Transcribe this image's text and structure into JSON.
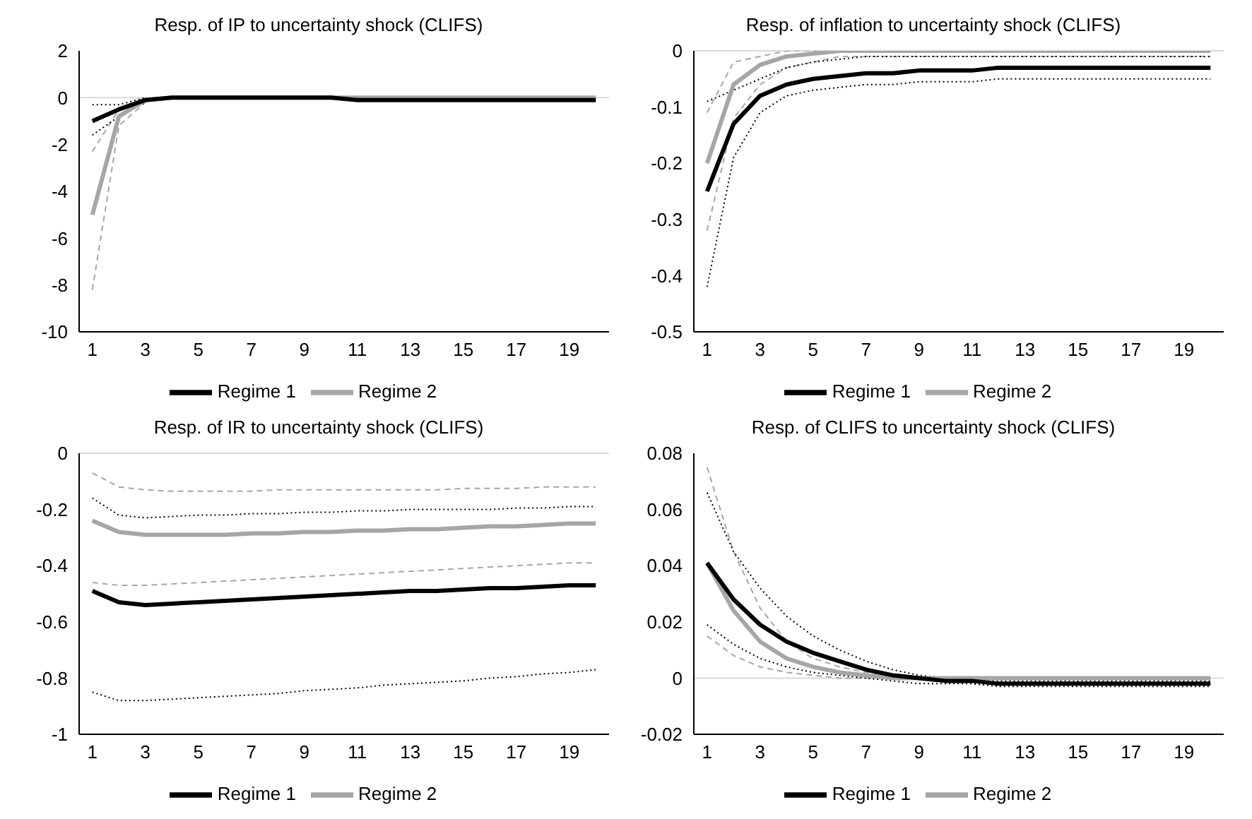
{
  "chart_data": [
    {
      "type": "line",
      "title": "Resp. of IP to uncertainty shock (CLIFS)",
      "x": [
        1,
        2,
        3,
        4,
        5,
        6,
        7,
        8,
        9,
        10,
        11,
        12,
        13,
        14,
        15,
        16,
        17,
        18,
        19,
        20
      ],
      "xlim": [
        0.5,
        20.5
      ],
      "xticks": [
        1,
        3,
        5,
        7,
        9,
        11,
        13,
        15,
        17,
        19
      ],
      "ylim": [
        -10,
        2
      ],
      "yticks": [
        -10,
        -8,
        -6,
        -4,
        -2,
        0,
        2
      ],
      "legend": "bottom",
      "grid": false,
      "ref_lines": [
        {
          "axis": "y",
          "value": 0,
          "color": "#d9d9d9"
        }
      ],
      "series": [
        {
          "name": "Regime 1",
          "color": "#000000",
          "values": [
            -1,
            -0.5,
            -0.1,
            0,
            0,
            0,
            0,
            0,
            0,
            0,
            -0.1,
            -0.1,
            -0.1,
            -0.1,
            -0.1,
            -0.1,
            -0.1,
            -0.1,
            -0.1,
            -0.1
          ]
        },
        {
          "name": "Regime 2",
          "color": "#a6a6a6",
          "values": [
            -5,
            -0.8,
            -0.1,
            0,
            0,
            0,
            0,
            0,
            0,
            0,
            0,
            0,
            0,
            0,
            0,
            0,
            0,
            0,
            0,
            0
          ]
        },
        {
          "color": "#000000",
          "line_style": "dotted",
          "values": [
            -0.3,
            -0.3,
            0,
            null,
            null,
            null,
            null,
            null,
            null,
            null,
            null,
            null,
            null,
            null,
            null,
            null,
            null,
            null,
            null,
            null
          ]
        },
        {
          "color": "#000000",
          "line_style": "dotted",
          "values": [
            -1.6,
            -0.8,
            -0.2,
            null,
            null,
            null,
            null,
            null,
            null,
            null,
            null,
            null,
            null,
            null,
            null,
            null,
            null,
            null,
            null,
            null
          ]
        },
        {
          "color": "#a6a6a6",
          "line_style": "dashed",
          "values": [
            -2.3,
            -0.5,
            0,
            null,
            null,
            null,
            null,
            null,
            null,
            null,
            null,
            null,
            null,
            null,
            null,
            null,
            null,
            null,
            null,
            null
          ]
        },
        {
          "color": "#a6a6a6",
          "line_style": "dashed",
          "values": [
            -8.2,
            -1.2,
            -0.2,
            null,
            null,
            null,
            null,
            null,
            null,
            null,
            null,
            null,
            null,
            null,
            null,
            null,
            null,
            null,
            null,
            null
          ]
        }
      ]
    },
    {
      "type": "line",
      "title": "Resp. of inflation to uncertainty shock (CLIFS)",
      "x": [
        1,
        2,
        3,
        4,
        5,
        6,
        7,
        8,
        9,
        10,
        11,
        12,
        13,
        14,
        15,
        16,
        17,
        18,
        19,
        20
      ],
      "xlim": [
        0.5,
        20.5
      ],
      "xticks": [
        1,
        3,
        5,
        7,
        9,
        11,
        13,
        15,
        17,
        19
      ],
      "ylim": [
        -0.5,
        0
      ],
      "yticks": [
        -0.5,
        -0.4,
        -0.3,
        -0.2,
        -0.1,
        0
      ],
      "legend": "bottom",
      "grid": false,
      "ref_lines": [
        {
          "axis": "y",
          "value": 0,
          "color": "#d9d9d9"
        }
      ],
      "series": [
        {
          "name": "Regime 1",
          "color": "#000000",
          "values": [
            -0.25,
            -0.13,
            -0.08,
            -0.06,
            -0.05,
            -0.045,
            -0.04,
            -0.04,
            -0.035,
            -0.035,
            -0.035,
            -0.03,
            -0.03,
            -0.03,
            -0.03,
            -0.03,
            -0.03,
            -0.03,
            -0.03,
            -0.03
          ]
        },
        {
          "name": "Regime 2",
          "color": "#a6a6a6",
          "values": [
            -0.2,
            -0.06,
            -0.025,
            -0.01,
            -0.005,
            0,
            0,
            0,
            0,
            0,
            0,
            0,
            0,
            0,
            0,
            0,
            0,
            0,
            0,
            0
          ]
        },
        {
          "color": "#000000",
          "line_style": "dotted",
          "values": [
            -0.09,
            -0.07,
            -0.05,
            -0.03,
            -0.02,
            -0.015,
            -0.01,
            -0.01,
            -0.01,
            -0.01,
            -0.01,
            -0.01,
            -0.01,
            -0.01,
            -0.01,
            -0.01,
            -0.01,
            -0.01,
            -0.01,
            -0.01
          ]
        },
        {
          "color": "#000000",
          "line_style": "dotted",
          "values": [
            -0.42,
            -0.19,
            -0.11,
            -0.08,
            -0.07,
            -0.065,
            -0.06,
            -0.06,
            -0.055,
            -0.055,
            -0.055,
            -0.05,
            -0.05,
            -0.05,
            -0.05,
            -0.05,
            -0.05,
            -0.05,
            -0.05,
            -0.05
          ]
        },
        {
          "color": "#a6a6a6",
          "line_style": "dashed",
          "values": [
            -0.11,
            -0.02,
            -0.01,
            0,
            0,
            0,
            0,
            0,
            0,
            0,
            0,
            0,
            0,
            0,
            0,
            0,
            0,
            0,
            0,
            0
          ]
        },
        {
          "color": "#a6a6a6",
          "line_style": "dashed",
          "values": [
            -0.32,
            -0.12,
            -0.06,
            -0.03,
            -0.02,
            -0.01,
            -0.01,
            -0.01,
            -0.01,
            -0.01,
            -0.01,
            -0.01,
            -0.01,
            -0.01,
            -0.01,
            -0.01,
            -0.01,
            -0.01,
            -0.01,
            -0.01
          ]
        }
      ]
    },
    {
      "type": "line",
      "title": "Resp. of IR to uncertainty shock (CLIFS)",
      "x": [
        1,
        2,
        3,
        4,
        5,
        6,
        7,
        8,
        9,
        10,
        11,
        12,
        13,
        14,
        15,
        16,
        17,
        18,
        19,
        20
      ],
      "xlim": [
        0.5,
        20.5
      ],
      "xticks": [
        1,
        3,
        5,
        7,
        9,
        11,
        13,
        15,
        17,
        19
      ],
      "ylim": [
        -1,
        0
      ],
      "yticks": [
        -1,
        -0.8,
        -0.6,
        -0.4,
        -0.2,
        0
      ],
      "legend": "bottom",
      "grid": false,
      "ref_lines": [
        {
          "axis": "y",
          "value": 0,
          "color": "#d9d9d9"
        }
      ],
      "series": [
        {
          "name": "Regime 1",
          "color": "#000000",
          "values": [
            -0.49,
            -0.53,
            -0.54,
            -0.535,
            -0.53,
            -0.525,
            -0.52,
            -0.515,
            -0.51,
            -0.505,
            -0.5,
            -0.495,
            -0.49,
            -0.49,
            -0.485,
            -0.48,
            -0.48,
            -0.475,
            -0.47,
            -0.47
          ]
        },
        {
          "name": "Regime 2",
          "color": "#a6a6a6",
          "values": [
            -0.24,
            -0.28,
            -0.29,
            -0.29,
            -0.29,
            -0.29,
            -0.285,
            -0.285,
            -0.28,
            -0.28,
            -0.275,
            -0.275,
            -0.27,
            -0.27,
            -0.265,
            -0.26,
            -0.26,
            -0.255,
            -0.25,
            -0.25
          ]
        },
        {
          "color": "#000000",
          "line_style": "dotted",
          "values": [
            -0.16,
            -0.22,
            -0.23,
            -0.225,
            -0.22,
            -0.22,
            -0.215,
            -0.215,
            -0.21,
            -0.21,
            -0.205,
            -0.205,
            -0.2,
            -0.2,
            -0.2,
            -0.2,
            -0.195,
            -0.195,
            -0.19,
            -0.19
          ]
        },
        {
          "color": "#000000",
          "line_style": "dotted",
          "values": [
            -0.85,
            -0.88,
            -0.88,
            -0.875,
            -0.87,
            -0.865,
            -0.86,
            -0.855,
            -0.845,
            -0.84,
            -0.835,
            -0.825,
            -0.82,
            -0.815,
            -0.81,
            -0.8,
            -0.795,
            -0.785,
            -0.78,
            -0.77
          ]
        },
        {
          "color": "#a6a6a6",
          "line_style": "dashed",
          "values": [
            -0.07,
            -0.12,
            -0.13,
            -0.135,
            -0.135,
            -0.135,
            -0.135,
            -0.13,
            -0.13,
            -0.13,
            -0.13,
            -0.13,
            -0.13,
            -0.13,
            -0.125,
            -0.125,
            -0.125,
            -0.12,
            -0.12,
            -0.12
          ]
        },
        {
          "color": "#a6a6a6",
          "line_style": "dashed",
          "values": [
            -0.46,
            -0.47,
            -0.47,
            -0.465,
            -0.46,
            -0.455,
            -0.45,
            -0.445,
            -0.44,
            -0.435,
            -0.43,
            -0.425,
            -0.42,
            -0.415,
            -0.41,
            -0.405,
            -0.4,
            -0.395,
            -0.39,
            -0.39
          ]
        }
      ]
    },
    {
      "type": "line",
      "title": "Resp. of CLIFS to uncertainty shock (CLIFS)",
      "x": [
        1,
        2,
        3,
        4,
        5,
        6,
        7,
        8,
        9,
        10,
        11,
        12,
        13,
        14,
        15,
        16,
        17,
        18,
        19,
        20
      ],
      "xlim": [
        0.5,
        20.5
      ],
      "xticks": [
        1,
        3,
        5,
        7,
        9,
        11,
        13,
        15,
        17,
        19
      ],
      "ylim": [
        -0.02,
        0.08
      ],
      "yticks": [
        -0.02,
        0,
        0.02,
        0.04,
        0.06,
        0.08
      ],
      "legend": "bottom",
      "grid": false,
      "ref_lines": [
        {
          "axis": "y",
          "value": 0,
          "color": "#d9d9d9"
        }
      ],
      "series": [
        {
          "name": "Regime 1",
          "color": "#000000",
          "values": [
            0.041,
            0.028,
            0.019,
            0.013,
            0.009,
            0.006,
            0.003,
            0.001,
            0,
            -0.001,
            -0.001,
            -0.002,
            -0.002,
            -0.002,
            -0.002,
            -0.002,
            -0.002,
            -0.002,
            -0.002,
            -0.002
          ]
        },
        {
          "name": "Regime 2",
          "color": "#a6a6a6",
          "values": [
            0.041,
            0.024,
            0.013,
            0.007,
            0.004,
            0.002,
            0.001,
            0,
            0,
            0,
            0,
            0,
            0,
            0,
            0,
            0,
            0,
            0,
            0,
            0
          ]
        },
        {
          "color": "#000000",
          "line_style": "dotted",
          "values": [
            0.066,
            0.045,
            0.032,
            0.022,
            0.015,
            0.01,
            0.006,
            0.003,
            0.001,
            0,
            -0.001,
            -0.001,
            -0.001,
            -0.001,
            -0.001,
            -0.001,
            -0.001,
            -0.001,
            -0.001,
            -0.001
          ]
        },
        {
          "color": "#000000",
          "line_style": "dotted",
          "values": [
            0.019,
            0.012,
            0.007,
            0.004,
            0.002,
            0.001,
            0,
            -0.001,
            -0.002,
            -0.002,
            -0.002,
            -0.003,
            -0.003,
            -0.003,
            -0.003,
            -0.003,
            -0.003,
            -0.003,
            -0.003,
            -0.003
          ]
        },
        {
          "color": "#a6a6a6",
          "line_style": "dashed",
          "values": [
            0.075,
            0.045,
            0.025,
            0.013,
            0.007,
            0.004,
            0.002,
            0.001,
            0,
            0,
            0,
            0,
            0,
            0,
            0,
            0,
            0,
            0,
            0,
            0
          ]
        },
        {
          "color": "#a6a6a6",
          "line_style": "dashed",
          "values": [
            0.015,
            0.008,
            0.004,
            0.002,
            0.001,
            0,
            0,
            0,
            0,
            0,
            0,
            0,
            0,
            0,
            0,
            0,
            0,
            0,
            0,
            0
          ]
        }
      ]
    }
  ]
}
